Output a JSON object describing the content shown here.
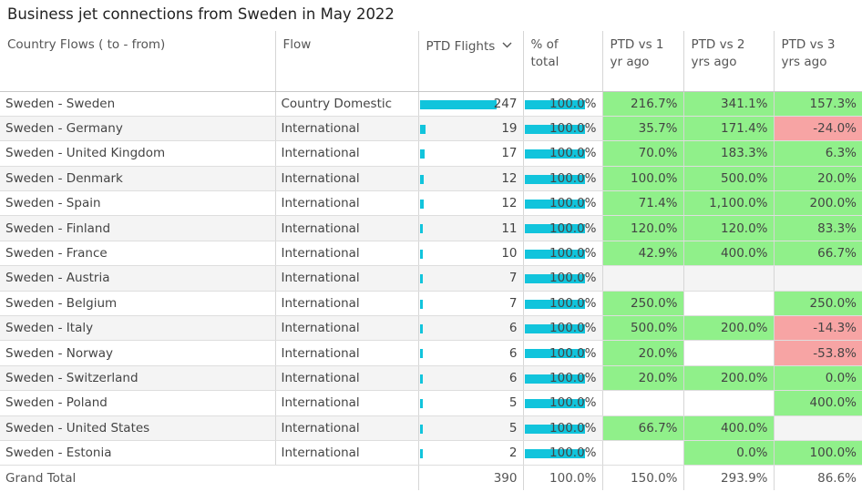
{
  "title": "Business jet connections from Sweden in May 2022",
  "chart_data": {
    "type": "table",
    "title": "Business jet connections from Sweden in May 2022",
    "columns": [
      {
        "label": "Country Flows ( to - from)"
      },
      {
        "label": "Flow"
      },
      {
        "label": "PTD Flights",
        "sort_icon": "chevron-down-icon"
      },
      {
        "label": "% of total"
      },
      {
        "label": "PTD vs 1 yr ago"
      },
      {
        "label": "PTD vs 2 yrs ago"
      },
      {
        "label": "PTD vs 3 yrs ago"
      }
    ],
    "bar_max": 247,
    "rows": [
      {
        "country": "Sweden - Sweden",
        "flow": "Country Domestic",
        "flights": 247,
        "flights_label": "247",
        "pct_value": 100,
        "pct": "100.0%",
        "vs1": "216.7%",
        "vs2": "341.1%",
        "vs3": "157.3%"
      },
      {
        "country": "Sweden - Germany",
        "flow": "International",
        "flights": 19,
        "flights_label": "19",
        "pct_value": 100,
        "pct": "100.0%",
        "vs1": "35.7%",
        "vs2": "171.4%",
        "vs3": "-24.0%"
      },
      {
        "country": "Sweden - United Kingdom",
        "flow": "International",
        "flights": 17,
        "flights_label": "17",
        "pct_value": 100,
        "pct": "100.0%",
        "vs1": "70.0%",
        "vs2": "183.3%",
        "vs3": "6.3%"
      },
      {
        "country": "Sweden - Denmark",
        "flow": "International",
        "flights": 12,
        "flights_label": "12",
        "pct_value": 100,
        "pct": "100.0%",
        "vs1": "100.0%",
        "vs2": "500.0%",
        "vs3": "20.0%"
      },
      {
        "country": "Sweden - Spain",
        "flow": "International",
        "flights": 12,
        "flights_label": "12",
        "pct_value": 100,
        "pct": "100.0%",
        "vs1": "71.4%",
        "vs2": "1,100.0%",
        "vs3": "200.0%"
      },
      {
        "country": "Sweden - Finland",
        "flow": "International",
        "flights": 11,
        "flights_label": "11",
        "pct_value": 100,
        "pct": "100.0%",
        "vs1": "120.0%",
        "vs2": "120.0%",
        "vs3": "83.3%"
      },
      {
        "country": "Sweden - France",
        "flow": "International",
        "flights": 10,
        "flights_label": "10",
        "pct_value": 100,
        "pct": "100.0%",
        "vs1": "42.9%",
        "vs2": "400.0%",
        "vs3": "66.7%"
      },
      {
        "country": "Sweden - Austria",
        "flow": "International",
        "flights": 7,
        "flights_label": "7",
        "pct_value": 100,
        "pct": "100.0%",
        "vs1": "",
        "vs2": "",
        "vs3": ""
      },
      {
        "country": "Sweden - Belgium",
        "flow": "International",
        "flights": 7,
        "flights_label": "7",
        "pct_value": 100,
        "pct": "100.0%",
        "vs1": "250.0%",
        "vs2": "",
        "vs3": "250.0%"
      },
      {
        "country": "Sweden - Italy",
        "flow": "International",
        "flights": 6,
        "flights_label": "6",
        "pct_value": 100,
        "pct": "100.0%",
        "vs1": "500.0%",
        "vs2": "200.0%",
        "vs3": "-14.3%"
      },
      {
        "country": "Sweden - Norway",
        "flow": "International",
        "flights": 6,
        "flights_label": "6",
        "pct_value": 100,
        "pct": "100.0%",
        "vs1": "20.0%",
        "vs2": "",
        "vs3": "-53.8%"
      },
      {
        "country": "Sweden - Switzerland",
        "flow": "International",
        "flights": 6,
        "flights_label": "6",
        "pct_value": 100,
        "pct": "100.0%",
        "vs1": "20.0%",
        "vs2": "200.0%",
        "vs3": "0.0%"
      },
      {
        "country": "Sweden - Poland",
        "flow": "International",
        "flights": 5,
        "flights_label": "5",
        "pct_value": 100,
        "pct": "100.0%",
        "vs1": "",
        "vs2": "",
        "vs3": "400.0%"
      },
      {
        "country": "Sweden - United States",
        "flow": "International",
        "flights": 5,
        "flights_label": "5",
        "pct_value": 100,
        "pct": "100.0%",
        "vs1": "66.7%",
        "vs2": "400.0%",
        "vs3": ""
      },
      {
        "country": "Sweden - Estonia",
        "flow": "International",
        "flights": 2,
        "flights_label": "2",
        "pct_value": 100,
        "pct": "100.0%",
        "vs1": "",
        "vs2": "0.0%",
        "vs3": "100.0%"
      }
    ],
    "total": {
      "label": "Grand Total",
      "flights": "390",
      "pct": "100.0%",
      "vs1": "150.0%",
      "vs2": "293.9%",
      "vs3": "86.6%"
    },
    "colors": {
      "bar": "#11c4dc",
      "positive": "#90f08a",
      "negative": "#f7a4a4"
    }
  }
}
